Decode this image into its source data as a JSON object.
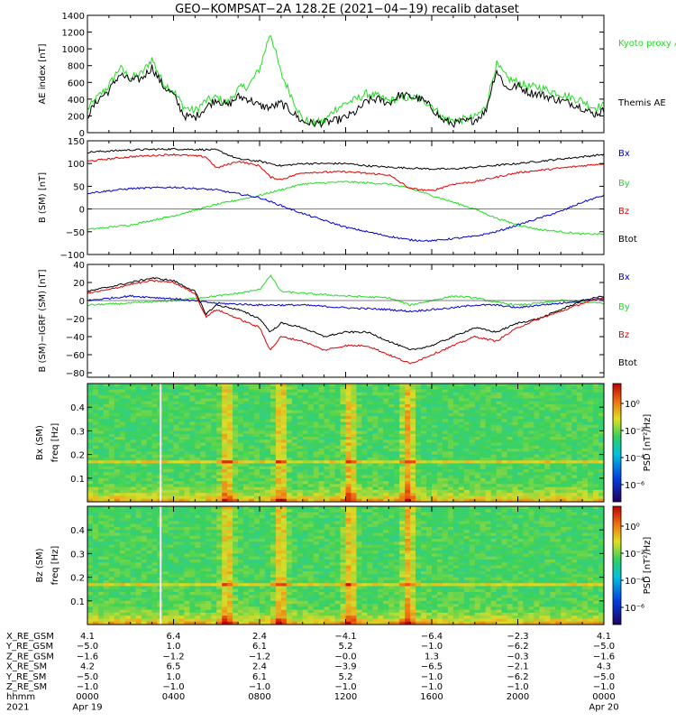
{
  "title": "GEO−KOMPSAT−2A 128.2E (2021−04−19) recalib dataset",
  "colors": {
    "black": "#000000",
    "green": "#22dd22",
    "red": "#e00000",
    "blue": "#0000d0"
  },
  "chart_data": [
    {
      "type": "line",
      "ylabel": "AE index [nT]",
      "ylim": [
        0,
        1400
      ],
      "yticks": [
        0,
        200,
        400,
        600,
        800,
        1000,
        1200,
        1400
      ],
      "legend": [
        {
          "label": "Kyoto proxy AE",
          "color": "green"
        },
        {
          "label": "Themis AE",
          "color": "black"
        }
      ],
      "series": [
        {
          "name": "Kyoto proxy AE",
          "color": "green",
          "x": [
            0,
            0.5,
            1,
            1.5,
            2,
            2.5,
            3,
            3.5,
            4,
            4.5,
            5,
            5.5,
            6,
            6.5,
            7,
            7.5,
            8,
            8.5,
            9,
            9.5,
            10,
            10.5,
            11,
            11.5,
            12,
            12.5,
            13,
            13.5,
            14,
            14.5,
            15,
            15.5,
            16,
            16.5,
            17,
            17.5,
            18,
            18.5,
            19,
            19.5,
            20,
            20.5,
            21,
            21.5,
            22,
            22.5,
            23,
            23.5,
            24
          ],
          "y": [
            280,
            430,
            560,
            780,
            650,
            700,
            880,
            600,
            500,
            300,
            260,
            380,
            420,
            350,
            520,
            560,
            760,
            1200,
            700,
            430,
            150,
            120,
            130,
            280,
            350,
            400,
            470,
            430,
            380,
            410,
            420,
            400,
            330,
            180,
            140,
            160,
            180,
            300,
            820,
            650,
            600,
            550,
            540,
            500,
            460,
            420,
            380,
            300,
            320
          ]
        },
        {
          "name": "Themis AE",
          "color": "black",
          "x": [
            0,
            0.5,
            1,
            1.5,
            2,
            2.5,
            3,
            3.5,
            4,
            4.5,
            5,
            5.5,
            6,
            6.5,
            7,
            7.5,
            8,
            8.5,
            9,
            9.5,
            10,
            10.5,
            11,
            11.5,
            12,
            12.5,
            13,
            13.5,
            14,
            14.5,
            15,
            15.5,
            16,
            16.5,
            17,
            17.5,
            18,
            18.5,
            19,
            19.5,
            20,
            20.5,
            21,
            21.5,
            22,
            22.5,
            23,
            23.5,
            24
          ],
          "y": [
            200,
            400,
            500,
            700,
            620,
            640,
            780,
            560,
            450,
            200,
            180,
            300,
            400,
            320,
            430,
            400,
            320,
            300,
            350,
            250,
            130,
            110,
            120,
            140,
            180,
            250,
            380,
            400,
            350,
            450,
            430,
            400,
            300,
            150,
            110,
            130,
            150,
            250,
            750,
            520,
            560,
            480,
            460,
            420,
            380,
            350,
            300,
            220,
            260
          ]
        }
      ]
    },
    {
      "type": "line",
      "ylabel": "B (SM) [nT]",
      "ylim": [
        -100,
        150
      ],
      "yticks": [
        -100,
        -50,
        0,
        50,
        100,
        150
      ],
      "legend": [
        {
          "label": "Bx",
          "color": "blue"
        },
        {
          "label": "By",
          "color": "green"
        },
        {
          "label": "Bz",
          "color": "red"
        },
        {
          "label": "Btot",
          "color": "black"
        }
      ],
      "series": [
        {
          "name": "Btot",
          "color": "black",
          "x": [
            0,
            2,
            4,
            6,
            7,
            8,
            9,
            10,
            11,
            12,
            13,
            14,
            15,
            16,
            17,
            18,
            19,
            20,
            21,
            22,
            23,
            24
          ],
          "y": [
            125,
            130,
            132,
            130,
            110,
            105,
            95,
            100,
            100,
            100,
            95,
            92,
            90,
            88,
            88,
            92,
            96,
            100,
            105,
            110,
            115,
            120
          ]
        },
        {
          "name": "By",
          "color": "green",
          "x": [
            0,
            2,
            4,
            6,
            8,
            10,
            12,
            14,
            15,
            16,
            17,
            18,
            19,
            20,
            21,
            22,
            23,
            24
          ],
          "y": [
            -45,
            -35,
            -15,
            10,
            30,
            55,
            60,
            55,
            45,
            30,
            15,
            0,
            -20,
            -35,
            -45,
            -50,
            -55,
            -55
          ]
        },
        {
          "name": "Bz",
          "color": "red",
          "x": [
            0,
            2,
            4,
            5.5,
            6,
            7,
            8,
            8.5,
            9,
            10,
            12,
            14,
            15,
            16,
            17,
            18,
            19,
            20,
            21,
            22,
            23,
            24
          ],
          "y": [
            105,
            115,
            120,
            115,
            90,
            105,
            95,
            70,
            65,
            80,
            82,
            75,
            45,
            40,
            55,
            60,
            70,
            80,
            85,
            90,
            95,
            100
          ]
        },
        {
          "name": "Bx",
          "color": "blue",
          "x": [
            0,
            2,
            4,
            6,
            8,
            10,
            12,
            14,
            15,
            16,
            17,
            18,
            19,
            20,
            21,
            22,
            23,
            24
          ],
          "y": [
            35,
            45,
            48,
            42,
            25,
            -10,
            -40,
            -60,
            -68,
            -70,
            -65,
            -60,
            -50,
            -35,
            -20,
            -5,
            15,
            30
          ]
        }
      ]
    },
    {
      "type": "line",
      "ylabel": "B (SM)−IGRF (SM) [nT]",
      "ylim": [
        -85,
        40
      ],
      "yticks": [
        -80,
        -60,
        -40,
        -20,
        0,
        20,
        40
      ],
      "legend": [
        {
          "label": "Bx",
          "color": "blue"
        },
        {
          "label": "By",
          "color": "green"
        },
        {
          "label": "Bz",
          "color": "red"
        },
        {
          "label": "Btot",
          "color": "black"
        }
      ],
      "series": [
        {
          "name": "By",
          "color": "green",
          "x": [
            0,
            2,
            4,
            6,
            7,
            8,
            8.5,
            9,
            10,
            12,
            14,
            15,
            16,
            17,
            18,
            19,
            20,
            21,
            22,
            23,
            24
          ],
          "y": [
            -5,
            -3,
            0,
            5,
            8,
            12,
            28,
            10,
            8,
            5,
            3,
            -5,
            0,
            5,
            3,
            -2,
            -5,
            -3,
            0,
            -2,
            -3
          ]
        },
        {
          "name": "Bx",
          "color": "blue",
          "x": [
            0,
            2,
            4,
            6,
            8,
            10,
            12,
            14,
            15,
            16,
            17,
            18,
            19,
            20,
            21,
            22,
            23,
            24
          ],
          "y": [
            0,
            5,
            2,
            -3,
            -5,
            -5,
            -8,
            -10,
            -12,
            -10,
            -8,
            -5,
            -5,
            -8,
            -5,
            -3,
            0,
            2
          ]
        },
        {
          "name": "Btot",
          "color": "black",
          "x": [
            0,
            1,
            2,
            3,
            4,
            5,
            5.5,
            6,
            7,
            8,
            8.5,
            9,
            10,
            11,
            12,
            13,
            14,
            15,
            16,
            17,
            18,
            19,
            20,
            21,
            22,
            23,
            24
          ],
          "y": [
            10,
            15,
            20,
            25,
            22,
            10,
            -15,
            -5,
            -10,
            -20,
            -35,
            -25,
            -30,
            -40,
            -35,
            -35,
            -45,
            -55,
            -50,
            -40,
            -30,
            -35,
            -25,
            -20,
            -10,
            0,
            5
          ]
        },
        {
          "name": "Bz",
          "color": "red",
          "x": [
            0,
            1,
            2,
            3,
            4,
            5,
            5.5,
            6,
            7,
            8,
            8.5,
            9,
            10,
            11,
            12,
            13,
            14,
            15,
            16,
            17,
            18,
            19,
            20,
            21,
            22,
            23,
            24
          ],
          "y": [
            8,
            12,
            18,
            22,
            20,
            8,
            -18,
            -10,
            -20,
            -30,
            -55,
            -40,
            -45,
            -55,
            -50,
            -50,
            -60,
            -70,
            -60,
            -50,
            -40,
            -45,
            -30,
            -20,
            -12,
            -3,
            3
          ]
        }
      ]
    },
    {
      "type": "heatmap",
      "ylabel": "freq [Hz]",
      "panel_label": "Bx (SM)",
      "ylim": [
        0,
        0.5
      ],
      "yticks": [
        0.1,
        0.2,
        0.3,
        0.4
      ],
      "colorbar_label": "PSD [nT²/Hz]",
      "colorbar_ticks": [
        "10⁰",
        "10⁻²",
        "10⁻⁴",
        "10⁻⁶"
      ]
    },
    {
      "type": "heatmap",
      "ylabel": "freq [Hz]",
      "panel_label": "Bz (SM)",
      "ylim": [
        0,
        0.5
      ],
      "yticks": [
        0.1,
        0.2,
        0.3,
        0.4
      ],
      "colorbar_label": "PSD [nT²/Hz]",
      "colorbar_ticks": [
        "10⁰",
        "10⁻²",
        "10⁻⁴",
        "10⁻⁶"
      ]
    }
  ],
  "x_axis": {
    "hours": [
      0,
      4,
      8,
      12,
      16,
      20,
      24
    ],
    "rows": [
      {
        "label": "X_RE_GSM",
        "values": [
          "4.1",
          "6.4",
          "2.4",
          "−4.1",
          "−6.4",
          "−2.3",
          "4.1"
        ]
      },
      {
        "label": "Y_RE_GSM",
        "values": [
          "−5.0",
          "1.0",
          "6.1",
          "5.2",
          "−1.0",
          "−6.2",
          "−5.0"
        ]
      },
      {
        "label": "Z_RE_GSM",
        "values": [
          "−1.6",
          "−1.2",
          "−1.2",
          "−0.0",
          "1.3",
          "−0.3",
          "−1.6"
        ]
      },
      {
        "label": "X_RE_SM",
        "values": [
          "4.2",
          "6.5",
          "2.4",
          "−3.9",
          "−6.5",
          "−2.1",
          "4.3"
        ]
      },
      {
        "label": "Y_RE_SM",
        "values": [
          "−5.0",
          "1.0",
          "6.1",
          "5.2",
          "−1.0",
          "−6.2",
          "−5.0"
        ]
      },
      {
        "label": "Z_RE_SM",
        "values": [
          "−1.0",
          "−1.0",
          "−1.0",
          "−1.0",
          "−1.0",
          "−1.0",
          "−1.0"
        ]
      },
      {
        "label": "hhmm",
        "values": [
          "0000",
          "0400",
          "0800",
          "1200",
          "1600",
          "2000",
          "0000"
        ]
      },
      {
        "label": "2021",
        "values": [
          "Apr 19",
          "",
          "",
          "",
          "",
          "",
          "Apr 20"
        ]
      }
    ]
  }
}
